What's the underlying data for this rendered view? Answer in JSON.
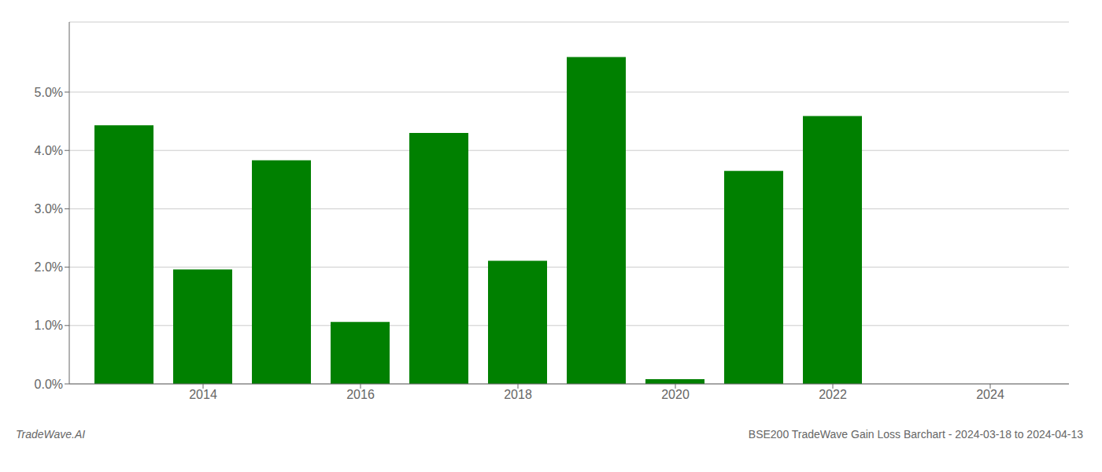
{
  "chart_data": {
    "type": "bar",
    "title": "BSE200 TradeWave Gain Loss Barchart - 2024-03-18 to 2024-04-13",
    "annotations": [
      "TradeWave.AI"
    ],
    "x": [
      2013,
      2014,
      2015,
      2016,
      2017,
      2018,
      2019,
      2020,
      2021,
      2022,
      2023,
      2024
    ],
    "values": [
      0.0443,
      0.0196,
      0.0383,
      0.0106,
      0.043,
      0.0211,
      0.056,
      0.0008,
      0.0365,
      0.0459,
      0.0,
      0.0
    ],
    "color": "#008000",
    "xlim": [
      2012.3,
      2025.0
    ],
    "xticks": [
      2014,
      2016,
      2018,
      2020,
      2022,
      2024
    ],
    "ylim": [
      0,
      0.062
    ],
    "yticks": [
      {
        "value": 0.0,
        "label": "0.0%"
      },
      {
        "value": 0.01,
        "label": "1.0%"
      },
      {
        "value": 0.02,
        "label": "2.0%"
      },
      {
        "value": 0.03,
        "label": "3.0%"
      },
      {
        "value": 0.04,
        "label": "4.0%"
      },
      {
        "value": 0.05,
        "label": "5.0%"
      }
    ],
    "grid": true
  }
}
